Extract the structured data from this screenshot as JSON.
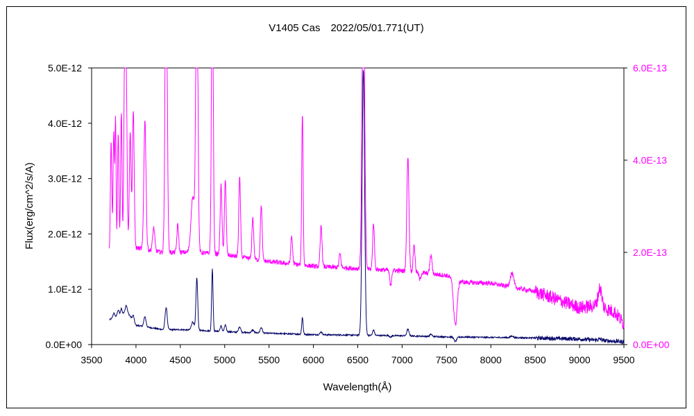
{
  "chart_data": {
    "type": "line",
    "title": "V1405 Cas　2022/05/01.771(UT)",
    "xlabel": "Wavelength(Å)",
    "ylabel": "Flux(erg/cm^2/s/A)",
    "xlim": [
      3500,
      9500
    ],
    "x_ticks": [
      3500,
      4000,
      4500,
      5000,
      5500,
      6000,
      6500,
      7000,
      7500,
      8000,
      8500,
      9000,
      9500
    ],
    "y_left_lim": [
      0,
      5e-12
    ],
    "y_left_ticks": [
      "0.0E+00",
      "1.0E-12",
      "2.0E-12",
      "3.0E-12",
      "4.0E-12",
      "5.0E-12"
    ],
    "y_right_lim": [
      0,
      6e-13
    ],
    "y_right_ticks": [
      "0.0E+00",
      "2.0E-13",
      "4.0E-13",
      "6.0E-13"
    ],
    "colors": {
      "left_axis_series": "#000066",
      "right_axis_series": "#ff00ff",
      "right_axis_text": "#ff00ff"
    },
    "series": [
      {
        "axis": "left",
        "color": "#000066",
        "continuum": [
          [
            3700,
            4.5e-13
          ],
          [
            3900,
            6e-13
          ],
          [
            4000,
            3.5e-13
          ],
          [
            4300,
            2.7e-13
          ],
          [
            4500,
            2.7e-13
          ],
          [
            4800,
            2.5e-13
          ],
          [
            5200,
            2.2e-13
          ],
          [
            5600,
            2e-13
          ],
          [
            6000,
            1.8e-13
          ],
          [
            6500,
            1.7e-13
          ],
          [
            7000,
            1.6e-13
          ],
          [
            7500,
            1.4e-13
          ],
          [
            8000,
            1.3e-13
          ],
          [
            8500,
            1.2e-13
          ],
          [
            9000,
            1e-13
          ],
          [
            9500,
            5e-14
          ]
        ],
        "lines": [
          [
            3750,
            8e-14,
            10
          ],
          [
            3800,
            1e-13,
            10
          ],
          [
            3835,
            1e-13,
            8
          ],
          [
            3889,
            1.2e-13,
            10
          ],
          [
            3970,
            1e-13,
            10
          ],
          [
            4101,
            1.8e-13,
            12
          ],
          [
            4340,
            4e-13,
            12
          ],
          [
            4640,
            1.5e-13,
            15
          ],
          [
            4686,
            9.5e-13,
            10
          ],
          [
            4861,
            1.12e-12,
            8
          ],
          [
            4959,
            1e-13,
            10
          ],
          [
            5007,
            1.2e-13,
            10
          ],
          [
            5169,
            1e-13,
            12
          ],
          [
            5317,
            5e-14,
            12
          ],
          [
            5412,
            1e-13,
            12
          ],
          [
            5876,
            3e-13,
            8
          ],
          [
            6087,
            5e-14,
            12
          ],
          [
            6563,
            4.8e-12,
            14
          ],
          [
            6678,
            1e-13,
            10
          ],
          [
            7065,
            1.2e-13,
            12
          ],
          [
            7325,
            4e-14,
            12
          ],
          [
            8237,
            3e-14,
            15
          ],
          [
            9230,
            2e-14,
            20
          ]
        ],
        "dips": [
          [
            7600,
            8e-14,
            15
          ],
          [
            6870,
            3e-14,
            10
          ]
        ]
      },
      {
        "axis": "right",
        "color": "#ff00ff",
        "continuum": [
          [
            3700,
            2e-13
          ],
          [
            4000,
            2.1e-13
          ],
          [
            4300,
            2e-13
          ],
          [
            4700,
            2e-13
          ],
          [
            5000,
            1.95e-13
          ],
          [
            5500,
            1.8e-13
          ],
          [
            6000,
            1.7e-13
          ],
          [
            6500,
            1.65e-13
          ],
          [
            7000,
            1.6e-13
          ],
          [
            7500,
            1.5e-13
          ],
          [
            7700,
            1.35e-13
          ],
          [
            8000,
            1.33e-13
          ],
          [
            8500,
            1.15e-13
          ],
          [
            9000,
            8e-14
          ],
          [
            9200,
            8.5e-14
          ],
          [
            9400,
            7e-14
          ],
          [
            9500,
            4.5e-14
          ]
        ],
        "lines": [
          [
            3720,
            2.4e-13,
            8
          ],
          [
            3750,
            2.6e-13,
            8
          ],
          [
            3770,
            2.8e-13,
            6
          ],
          [
            3800,
            2.5e-13,
            8
          ],
          [
            3835,
            3e-13,
            8
          ],
          [
            3870,
            3.5e-13,
            8
          ],
          [
            3889,
            4e-13,
            10
          ],
          [
            3935,
            2.5e-13,
            10
          ],
          [
            3970,
            3e-13,
            10
          ],
          [
            4101,
            2.8e-13,
            12
          ],
          [
            4200,
            5e-14,
            12
          ],
          [
            4340,
            7e-13,
            12
          ],
          [
            4471,
            6e-14,
            10
          ],
          [
            4640,
            1.2e-13,
            20
          ],
          [
            4686,
            6.5e-13,
            12
          ],
          [
            4861,
            6.5e-13,
            10
          ],
          [
            4959,
            1.5e-13,
            10
          ],
          [
            5007,
            1.6e-13,
            10
          ],
          [
            5169,
            1.7e-13,
            10
          ],
          [
            5317,
            9e-14,
            10
          ],
          [
            5412,
            1.2e-13,
            10
          ],
          [
            5755,
            6e-14,
            10
          ],
          [
            5876,
            3.3e-13,
            8
          ],
          [
            6087,
            9e-14,
            10
          ],
          [
            6300,
            3e-14,
            10
          ],
          [
            6563,
            7e-13,
            14
          ],
          [
            6678,
            1e-13,
            10
          ],
          [
            7065,
            2.5e-13,
            12
          ],
          [
            7135,
            6e-14,
            10
          ],
          [
            7325,
            4e-14,
            12
          ],
          [
            8237,
            3e-14,
            20
          ],
          [
            9230,
            4e-14,
            20
          ]
        ],
        "dips": [
          [
            7600,
            1e-13,
            20
          ],
          [
            6870,
            3.5e-14,
            10
          ],
          [
            7200,
            1.5e-14,
            10
          ]
        ]
      }
    ]
  }
}
